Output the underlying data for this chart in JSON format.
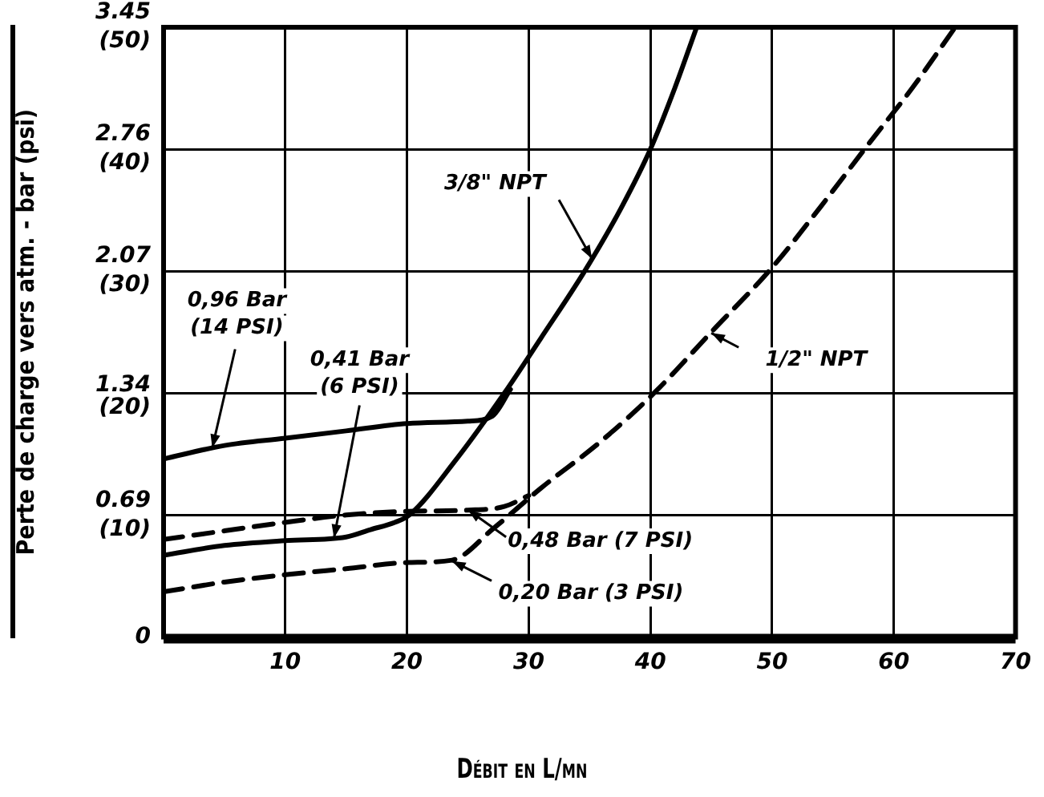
{
  "chart_data": {
    "type": "line",
    "xlabel": "Débit en L/mn",
    "ylabel": "Perte de charge vers atm. - bar (psi)",
    "xlim": [
      0,
      70
    ],
    "xticks": [
      {
        "value": 0,
        "label": null
      },
      10,
      20,
      30,
      40,
      50,
      60,
      70
    ],
    "ylim": [
      0,
      3.45
    ],
    "yticks": [
      0,
      0.69,
      1.34,
      2.07,
      2.76,
      3.45
    ],
    "y2lim": [
      0,
      50
    ],
    "y2ticks": [
      {
        "value": 0,
        "label": null
      },
      {
        "value": 10,
        "label": "(10)"
      },
      {
        "value": 20,
        "label": "(20)"
      },
      {
        "value": 30,
        "label": "(30)"
      },
      {
        "value": 40,
        "label": "(40)"
      },
      {
        "value": 50,
        "label": "(50)"
      }
    ],
    "grid": true,
    "legend": false,
    "marker": "none",
    "series": [
      {
        "color": "#000000",
        "line_style": "solid",
        "axis": "y2",
        "x": [
          0,
          5,
          10,
          15,
          20,
          25,
          27,
          28.5
        ],
        "values": [
          14.6,
          15.7,
          16.3,
          16.9,
          17.5,
          17.7,
          18.1,
          20.3
        ]
      },
      {
        "color": "#000000",
        "line_style": "solid",
        "axis": "y2",
        "x": [
          0,
          5,
          10,
          15,
          17,
          19,
          20.2,
          24,
          28,
          31,
          34.6,
          37.5,
          40,
          42,
          43.8
        ],
        "values": [
          6.7,
          7.5,
          7.9,
          8.2,
          8.8,
          9.4,
          10,
          14.5,
          20,
          24.5,
          30,
          35,
          40,
          45,
          50
        ]
      },
      {
        "color": "#000000",
        "line_style": "dashed",
        "axis": "y2",
        "x": [
          0,
          5,
          10,
          15,
          20,
          25,
          28,
          30
        ],
        "values": [
          8,
          8.7,
          9.4,
          10,
          10.3,
          10.4,
          10.7,
          11.6
        ]
      },
      {
        "color": "#000000",
        "line_style": "dashed",
        "axis": "y2",
        "x": [
          0,
          5,
          10,
          15,
          20,
          23.7,
          27.1,
          31,
          36,
          40.4,
          45,
          50,
          54,
          57.9,
          61.5,
          64.9
        ],
        "values": [
          3.7,
          4.5,
          5.1,
          5.6,
          6.1,
          6.3,
          8.9,
          12.2,
          16.1,
          20.1,
          25,
          30.3,
          35.3,
          40.4,
          45,
          49.8
        ]
      }
    ],
    "annotations": [
      {
        "text": "0,96 Bar\n(14 PSI)",
        "x": 4,
        "y": 1.07
      },
      {
        "text": "0,41 Bar\n(6 PSI)",
        "x": 14,
        "y": 0.56
      },
      {
        "text": "3/8\" NPT",
        "x": 35.2,
        "y": 2.14
      },
      {
        "text": "1/2\" NPT",
        "x": 45,
        "y": 1.72
      },
      {
        "text": "0,48 Bar (7 PSI)",
        "x": 25,
        "y": 0.72
      },
      {
        "text": "0,20 Bar (3 PSI)",
        "x": 23.7,
        "y": 0.43
      }
    ]
  }
}
